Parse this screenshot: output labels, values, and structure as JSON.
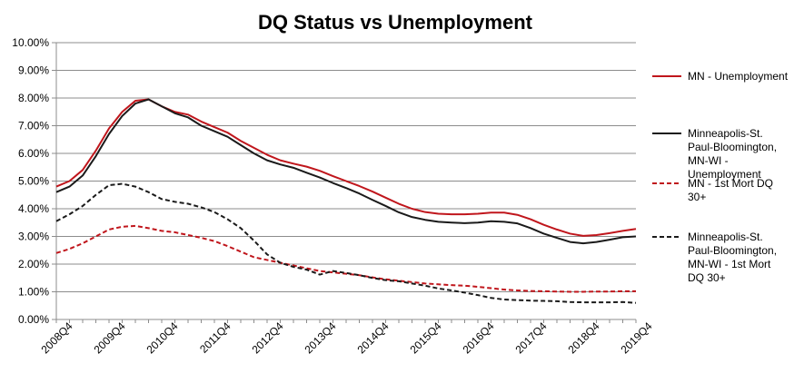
{
  "chart_data": {
    "type": "line",
    "title": "DQ Status vs Unemployment",
    "xlabel": "",
    "ylabel": "",
    "ylim": [
      0,
      10
    ],
    "y_tick_labels": [
      "0.00%",
      "1.00%",
      "2.00%",
      "3.00%",
      "4.00%",
      "5.00%",
      "6.00%",
      "7.00%",
      "8.00%",
      "9.00%",
      "10.00%"
    ],
    "x_tick_labels": [
      "2008Q4",
      "2009Q4",
      "2010Q4",
      "2011Q4",
      "2012Q4",
      "2013Q4",
      "2014Q4",
      "2015Q4",
      "2016Q4",
      "2017Q4",
      "2018Q4",
      "2019Q4"
    ],
    "x_start_quarter": "2008Q3",
    "legend_position": "right",
    "grid": "horizontal",
    "series": [
      {
        "name": "MN - Unemployment",
        "color": "#c0161c",
        "dash": "solid",
        "values": [
          4.8,
          5.0,
          5.4,
          6.1,
          6.9,
          7.5,
          7.9,
          7.95,
          7.7,
          7.5,
          7.4,
          7.15,
          6.95,
          6.75,
          6.45,
          6.2,
          5.95,
          5.75,
          5.63,
          5.52,
          5.37,
          5.18,
          5.0,
          4.82,
          4.62,
          4.4,
          4.18,
          4.0,
          3.88,
          3.82,
          3.8,
          3.8,
          3.82,
          3.86,
          3.86,
          3.78,
          3.62,
          3.42,
          3.25,
          3.1,
          3.02,
          3.05,
          3.12,
          3.2,
          3.27
        ]
      },
      {
        "name": "Minneapolis-St. Paul-Bloomington, MN-WI - Unemployment",
        "color": "#1a1a1a",
        "dash": "solid",
        "values": [
          4.6,
          4.8,
          5.2,
          5.9,
          6.7,
          7.35,
          7.8,
          7.95,
          7.7,
          7.45,
          7.3,
          7.0,
          6.8,
          6.6,
          6.3,
          6.0,
          5.75,
          5.6,
          5.48,
          5.3,
          5.13,
          4.93,
          4.75,
          4.55,
          4.32,
          4.1,
          3.87,
          3.7,
          3.6,
          3.53,
          3.5,
          3.48,
          3.5,
          3.55,
          3.53,
          3.47,
          3.3,
          3.1,
          2.95,
          2.8,
          2.75,
          2.8,
          2.88,
          2.97,
          3.0
        ]
      },
      {
        "name": "MN - 1st Mort DQ 30+",
        "color": "#c0161c",
        "dash": "dashed",
        "values": [
          2.4,
          2.55,
          2.75,
          3.0,
          3.25,
          3.35,
          3.38,
          3.3,
          3.2,
          3.15,
          3.05,
          2.95,
          2.83,
          2.65,
          2.45,
          2.25,
          2.15,
          2.05,
          1.95,
          1.85,
          1.75,
          1.7,
          1.65,
          1.6,
          1.52,
          1.45,
          1.4,
          1.35,
          1.3,
          1.27,
          1.24,
          1.22,
          1.18,
          1.13,
          1.08,
          1.05,
          1.03,
          1.02,
          1.01,
          1.0,
          1.0,
          1.01,
          1.01,
          1.02,
          1.02
        ]
      },
      {
        "name": "Minneapolis-St. Paul-Bloomington, MN-WI - 1st Mort DQ 30+",
        "color": "#1a1a1a",
        "dash": "dashed",
        "values": [
          3.55,
          3.8,
          4.1,
          4.5,
          4.85,
          4.9,
          4.8,
          4.6,
          4.35,
          4.25,
          4.18,
          4.05,
          3.88,
          3.62,
          3.3,
          2.85,
          2.35,
          2.05,
          1.9,
          1.8,
          1.62,
          1.75,
          1.68,
          1.6,
          1.5,
          1.42,
          1.38,
          1.3,
          1.22,
          1.12,
          1.05,
          0.97,
          0.88,
          0.78,
          0.72,
          0.7,
          0.68,
          0.67,
          0.66,
          0.63,
          0.62,
          0.62,
          0.62,
          0.63,
          0.6
        ]
      }
    ]
  }
}
